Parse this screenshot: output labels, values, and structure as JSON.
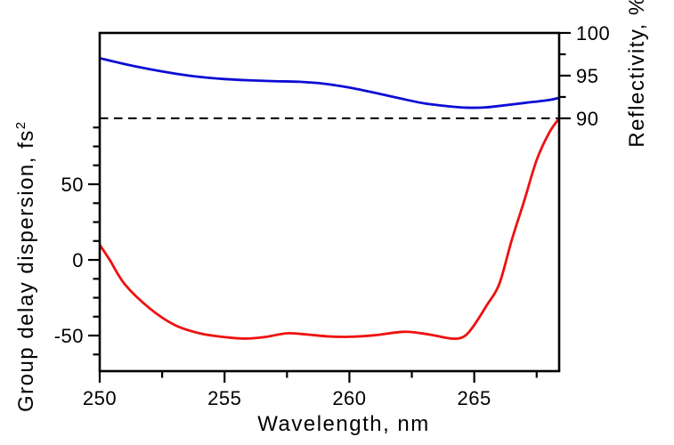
{
  "figure": {
    "left_axis_title": {
      "text": "Group delay dispersion, fs",
      "sup": "2"
    },
    "bottom_axis_title": "Wavelength, nm",
    "right_axis_title": "Reflectivity, %"
  },
  "colors": {
    "gdd_curve": "#ee1111",
    "reflectivity_curve": "#0d0dd4",
    "axis": "#000000",
    "threshold_line": "#000000",
    "background": "#ffffff"
  },
  "chart_data": {
    "type": "line",
    "title": "",
    "grid": false,
    "legend": false,
    "x_axis": {
      "label": "Wavelength, nm",
      "range": [
        250,
        268.4
      ],
      "major_ticks": [
        250,
        255,
        260,
        265
      ],
      "minor_ticks": [
        252.5,
        257.5,
        262.5,
        267.5
      ]
    },
    "left_y_axis": {
      "label": "Group delay dispersion, fs2",
      "range": [
        -73.5,
        150
      ],
      "major_ticks": [
        50,
        0,
        -50
      ],
      "minor_ticks": [
        87.5,
        75,
        62.5,
        37.5,
        25,
        12.5,
        -12.5,
        -25,
        -37.5,
        -62.5
      ]
    },
    "right_y_axis": {
      "label": "Reflectivity, %",
      "range": [
        60.4,
        100
      ],
      "major_ticks": [
        100,
        95,
        90
      ],
      "minor_ticks": [
        97.5,
        92.5
      ]
    },
    "threshold_line": {
      "axis": "right",
      "value": 90,
      "style": "dashed"
    },
    "series": [
      {
        "name": "Group delay dispersion",
        "axis": "left",
        "color": "#ee1111",
        "x": [
          250,
          250.4,
          251,
          252,
          253,
          254,
          255,
          255.8,
          256.6,
          257.5,
          258.3,
          259.2,
          260,
          261,
          262.2,
          263.2,
          264.1,
          264.6,
          265,
          265.5,
          266,
          266.5,
          267,
          267.5,
          268,
          268.4
        ],
        "y": [
          10,
          0,
          -16,
          -32,
          -43,
          -48.5,
          -51,
          -52,
          -51,
          -48.5,
          -49.3,
          -50.6,
          -50.8,
          -49.8,
          -47.5,
          -49.3,
          -52,
          -50.5,
          -43,
          -30,
          -16,
          13,
          39,
          66,
          84,
          93.5
        ]
      },
      {
        "name": "Reflectivity",
        "axis": "right",
        "color": "#0d0dd4",
        "x": [
          250,
          251,
          252,
          253,
          254,
          255,
          256,
          257,
          258,
          259,
          260,
          261,
          262,
          263,
          264,
          264.7,
          265.4,
          266,
          267,
          268,
          268.4
        ],
        "y": [
          97.05,
          96.35,
          95.75,
          95.25,
          94.85,
          94.6,
          94.45,
          94.35,
          94.28,
          94.05,
          93.6,
          93.0,
          92.35,
          91.75,
          91.4,
          91.25,
          91.27,
          91.45,
          91.8,
          92.15,
          92.4
        ]
      }
    ]
  }
}
